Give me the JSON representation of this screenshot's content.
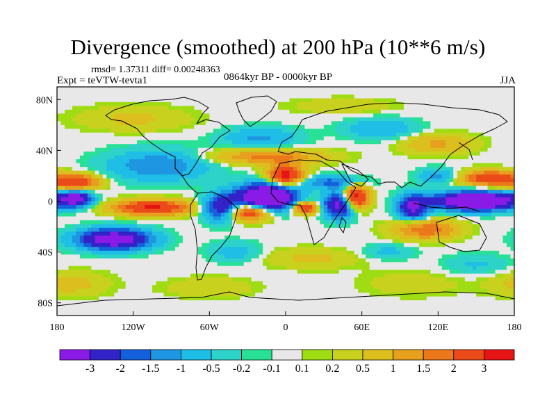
{
  "chart_data": {
    "type": "heatmap",
    "title": "Divergence (smoothed) at 200 hPa (10**6 m/s)",
    "stats": "rmsd= 1.37311 diff= 0.00248363",
    "experiment": "Expt = teVTW-tevta1",
    "period": "0864kyr BP - 0000kyr BP",
    "season": "JJA",
    "xlim": [
      -180,
      180
    ],
    "ylim": [
      -90,
      90
    ],
    "x_ticks": [
      {
        "value": -180,
        "label": "180"
      },
      {
        "value": -120,
        "label": "120W"
      },
      {
        "value": -60,
        "label": "60W"
      },
      {
        "value": 0,
        "label": "0"
      },
      {
        "value": 60,
        "label": "60E"
      },
      {
        "value": 120,
        "label": "120E"
      },
      {
        "value": 180,
        "label": "180"
      }
    ],
    "y_ticks": [
      {
        "value": 80,
        "label": "80N"
      },
      {
        "value": 40,
        "label": "40N"
      },
      {
        "value": 0,
        "label": "0"
      },
      {
        "value": -40,
        "label": "40S"
      },
      {
        "value": -80,
        "label": "80S"
      }
    ],
    "colorbar": {
      "colors": [
        "#8a1ae6",
        "#3223c8",
        "#145fdc",
        "#1e96e1",
        "#1ebee6",
        "#2dd2c8",
        "#28e196",
        "#e8e8e8",
        "#a0dc14",
        "#c8d21e",
        "#dcbe1e",
        "#e6a01e",
        "#eb7819",
        "#eb4b19",
        "#e61414"
      ],
      "labels": [
        "-3",
        "-2",
        "-1.5",
        "-1",
        "-0.5",
        "-0.2",
        "-0.1",
        "0.1",
        "0.2",
        "0.5",
        "1",
        "1.5",
        "2",
        "3"
      ]
    },
    "features": [
      {
        "lon": -15,
        "lat": 3,
        "rx": 22,
        "ry": 10,
        "v": -6,
        "note": "tropical Atlantic convergence (purple)"
      },
      {
        "lon": -50,
        "lat": -5,
        "rx": 14,
        "ry": 10,
        "v": -3.2
      },
      {
        "lon": 150,
        "lat": 0,
        "rx": 32,
        "ry": 7,
        "v": -5.5,
        "note": "W Pacific (purple)"
      },
      {
        "lon": -135,
        "lat": -30,
        "rx": 28,
        "ry": 8,
        "v": -4.2
      },
      {
        "lon": -165,
        "lat": 2,
        "rx": 12,
        "ry": 6,
        "v": -3.4
      },
      {
        "lon": 100,
        "lat": -5,
        "rx": 12,
        "ry": 10,
        "v": -3.2
      },
      {
        "lon": 42,
        "lat": -3,
        "rx": 12,
        "ry": 10,
        "v": -3.5
      },
      {
        "lon": 35,
        "lat": 15,
        "rx": 25,
        "ry": 5,
        "v": -1.6
      },
      {
        "lon": -100,
        "lat": 28,
        "rx": 40,
        "ry": 12,
        "v": -1.5
      },
      {
        "lon": -20,
        "lat": 50,
        "rx": 30,
        "ry": 8,
        "v": -1.1
      },
      {
        "lon": 75,
        "lat": 57,
        "rx": 28,
        "ry": 8,
        "v": -1.0
      },
      {
        "lon": 120,
        "lat": 20,
        "rx": 15,
        "ry": 6,
        "v": -1.2
      },
      {
        "lon": 0,
        "lat": 20,
        "rx": 14,
        "ry": 8,
        "v": 3.6,
        "note": "Sahara (red)"
      },
      {
        "lon": 55,
        "lat": 3,
        "rx": 10,
        "ry": 9,
        "v": 3.8,
        "note": "Indian Ocean (red)"
      },
      {
        "lon": -30,
        "lat": -8,
        "rx": 18,
        "ry": 7,
        "v": 3.5
      },
      {
        "lon": -105,
        "lat": -5,
        "rx": 30,
        "ry": 6,
        "v": 3.2
      },
      {
        "lon": 15,
        "lat": -5,
        "rx": 10,
        "ry": 5,
        "v": 3.0
      },
      {
        "lon": -165,
        "lat": 15,
        "rx": 18,
        "ry": 6,
        "v": 2.8
      },
      {
        "lon": 160,
        "lat": 18,
        "rx": 22,
        "ry": 6,
        "v": 2.8
      },
      {
        "lon": 110,
        "lat": -22,
        "rx": 25,
        "ry": 8,
        "v": 2.0
      },
      {
        "lon": -15,
        "lat": 35,
        "rx": 45,
        "ry": 6,
        "v": 1.7
      },
      {
        "lon": 120,
        "lat": 45,
        "rx": 28,
        "ry": 8,
        "v": 1.1
      },
      {
        "lon": -120,
        "lat": 65,
        "rx": 45,
        "ry": 10,
        "v": 0.6
      },
      {
        "lon": 45,
        "lat": 75,
        "rx": 40,
        "ry": 6,
        "v": 0.5
      },
      {
        "lon": 20,
        "lat": -45,
        "rx": 40,
        "ry": 8,
        "v": 0.6
      },
      {
        "lon": -170,
        "lat": -65,
        "rx": 30,
        "ry": 10,
        "v": 0.7
      },
      {
        "lon": 100,
        "lat": -65,
        "rx": 40,
        "ry": 10,
        "v": 0.4
      },
      {
        "lon": -60,
        "lat": -68,
        "rx": 35,
        "ry": 8,
        "v": 0.5
      },
      {
        "lon": 150,
        "lat": -50,
        "rx": 25,
        "ry": 8,
        "v": -0.6
      },
      {
        "lon": -40,
        "lat": -40,
        "rx": 20,
        "ry": 8,
        "v": -0.8
      },
      {
        "lon": 80,
        "lat": -40,
        "rx": 20,
        "ry": 6,
        "v": -0.7
      }
    ]
  }
}
